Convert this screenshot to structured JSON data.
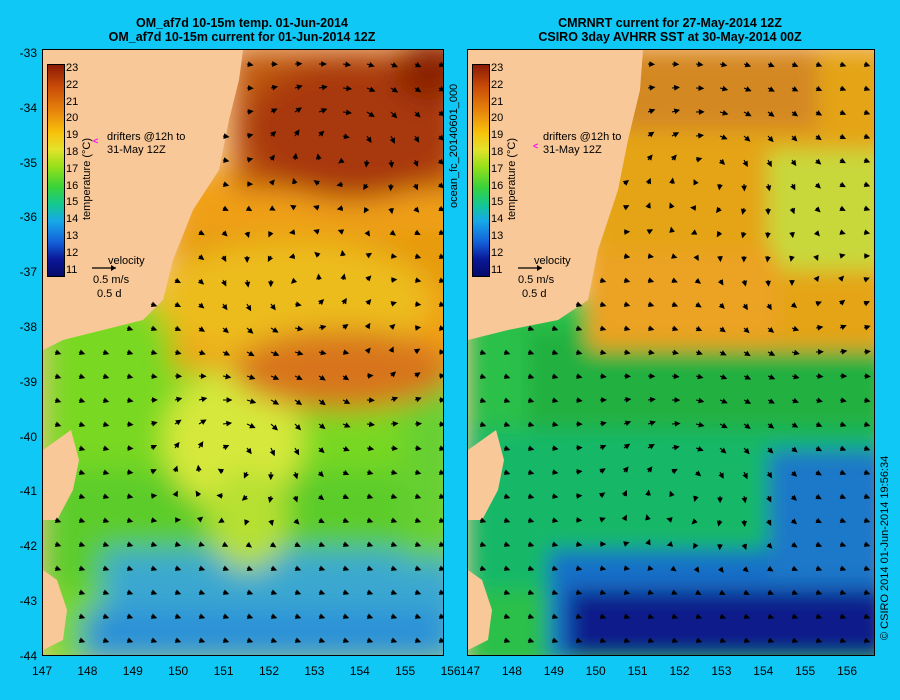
{
  "left_panel": {
    "title_line1": "OM_af7d 10-15m temp. 01-Jun-2014",
    "title_line2": "OM_af7d 10-15m current for 01-Jun-2014 12Z"
  },
  "right_panel": {
    "title_line1": "CMRNRT current for 27-May-2014 12Z",
    "title_line2": "CSIRO 3day AVHRR SST at 30-May-2014 00Z"
  },
  "y_ticks": [
    "-33",
    "-34",
    "-35",
    "-36",
    "-37",
    "-38",
    "-39",
    "-40",
    "-41",
    "-42",
    "-43",
    "-44"
  ],
  "x_ticks": [
    "147",
    "148",
    "149",
    "150",
    "151",
    "152",
    "153",
    "154",
    "155",
    "156"
  ],
  "colorbar": {
    "label": "temperature (°C)",
    "ticks": [
      "23",
      "22",
      "21",
      "20",
      "19",
      "18",
      "17",
      "16",
      "15",
      "14",
      "13",
      "12",
      "11"
    ]
  },
  "legend": {
    "drifters_line1": "drifters @12h to",
    "drifters_line2": "31-May 12Z",
    "velocity_label": "velocity",
    "velocity_scale": "0.5 m/s",
    "velocity_time": "0.5 d"
  },
  "side_label_middle": "ocean_fc_20140601_000",
  "side_stamp": "© CSIRO 2014  01-Jun-2014 19:56:34",
  "colors": {
    "background": "#0fc8f5",
    "land": "#f8c898",
    "drifter": "#ff00ff"
  }
}
